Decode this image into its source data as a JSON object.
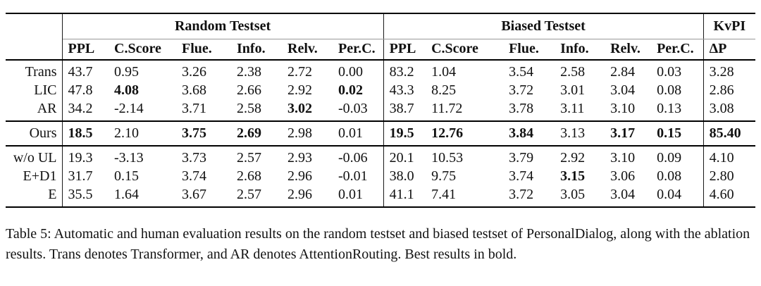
{
  "colors": {
    "text": "#111111",
    "rule": "#000000",
    "light_rule": "#999999"
  },
  "table": {
    "group_header": {
      "corner": "",
      "groups": [
        {
          "label": "Random Testset",
          "span": 6
        },
        {
          "label": "Biased Testset",
          "span": 6
        },
        {
          "label": "KvPI",
          "span": 1
        }
      ]
    },
    "columns": [
      "",
      "PPL",
      "C.Score",
      "Flue.",
      "Info.",
      "Relv.",
      "Per.C.",
      "PPL",
      "C.Score",
      "Flue.",
      "Info.",
      "Relv.",
      "Per.C.",
      "ΔP"
    ],
    "sections": [
      {
        "name": "baselines",
        "rows": [
          {
            "label": "Trans",
            "cells": [
              {
                "v": "43.7"
              },
              {
                "v": "0.95"
              },
              {
                "v": "3.26"
              },
              {
                "v": "2.38"
              },
              {
                "v": "2.72"
              },
              {
                "v": "0.00"
              },
              {
                "v": "83.2"
              },
              {
                "v": "1.04"
              },
              {
                "v": "3.54"
              },
              {
                "v": "2.58"
              },
              {
                "v": "2.84"
              },
              {
                "v": "0.03"
              },
              {
                "v": "3.28"
              }
            ]
          },
          {
            "label": "LIC",
            "cells": [
              {
                "v": "47.8"
              },
              {
                "v": "4.08",
                "b": true
              },
              {
                "v": "3.68"
              },
              {
                "v": "2.66"
              },
              {
                "v": "2.92"
              },
              {
                "v": "0.02",
                "b": true
              },
              {
                "v": "43.3"
              },
              {
                "v": "8.25"
              },
              {
                "v": "3.72"
              },
              {
                "v": "3.01"
              },
              {
                "v": "3.04"
              },
              {
                "v": "0.08"
              },
              {
                "v": "2.86"
              }
            ]
          },
          {
            "label": "AR",
            "cells": [
              {
                "v": "34.2"
              },
              {
                "v": "-2.14"
              },
              {
                "v": "3.71"
              },
              {
                "v": "2.58"
              },
              {
                "v": "3.02",
                "b": true
              },
              {
                "v": "-0.03"
              },
              {
                "v": "38.7"
              },
              {
                "v": "11.72"
              },
              {
                "v": "3.78"
              },
              {
                "v": "3.11"
              },
              {
                "v": "3.10"
              },
              {
                "v": "0.13"
              },
              {
                "v": "3.08"
              }
            ]
          }
        ]
      },
      {
        "name": "ours",
        "rows": [
          {
            "label": "Ours",
            "cells": [
              {
                "v": "18.5",
                "b": true
              },
              {
                "v": "2.10"
              },
              {
                "v": "3.75",
                "b": true
              },
              {
                "v": "2.69",
                "b": true
              },
              {
                "v": "2.98"
              },
              {
                "v": "0.01"
              },
              {
                "v": "19.5",
                "b": true
              },
              {
                "v": "12.76",
                "b": true
              },
              {
                "v": "3.84",
                "b": true
              },
              {
                "v": "3.13"
              },
              {
                "v": "3.17",
                "b": true
              },
              {
                "v": "0.15",
                "b": true
              },
              {
                "v": "85.40",
                "b": true
              }
            ]
          }
        ]
      },
      {
        "name": "ablations",
        "rows": [
          {
            "label": "w/o UL",
            "cells": [
              {
                "v": "19.3"
              },
              {
                "v": "-3.13"
              },
              {
                "v": "3.73"
              },
              {
                "v": "2.57"
              },
              {
                "v": "2.93"
              },
              {
                "v": "-0.06"
              },
              {
                "v": "20.1"
              },
              {
                "v": "10.53"
              },
              {
                "v": "3.79"
              },
              {
                "v": "2.92"
              },
              {
                "v": "3.10"
              },
              {
                "v": "0.09"
              },
              {
                "v": "4.10"
              }
            ]
          },
          {
            "label": "E+D1",
            "cells": [
              {
                "v": "31.7"
              },
              {
                "v": "0.15"
              },
              {
                "v": "3.74"
              },
              {
                "v": "2.68"
              },
              {
                "v": "2.96"
              },
              {
                "v": "-0.01"
              },
              {
                "v": "38.0"
              },
              {
                "v": "9.75"
              },
              {
                "v": "3.74"
              },
              {
                "v": "3.15",
                "b": true
              },
              {
                "v": "3.06"
              },
              {
                "v": "0.08"
              },
              {
                "v": "2.80"
              }
            ]
          },
          {
            "label": "E",
            "cells": [
              {
                "v": "35.5"
              },
              {
                "v": "1.64"
              },
              {
                "v": "3.67"
              },
              {
                "v": "2.57"
              },
              {
                "v": "2.96"
              },
              {
                "v": "0.01"
              },
              {
                "v": "41.1"
              },
              {
                "v": "7.41"
              },
              {
                "v": "3.72"
              },
              {
                "v": "3.05"
              },
              {
                "v": "3.04"
              },
              {
                "v": "0.04"
              },
              {
                "v": "4.60"
              }
            ]
          }
        ]
      }
    ]
  },
  "caption": "Table 5: Automatic and human evaluation results on the random testset and biased testset of PersonalDialog, along with the ablation results. Trans denotes Transformer, and AR denotes AttentionRouting. Best results in bold."
}
